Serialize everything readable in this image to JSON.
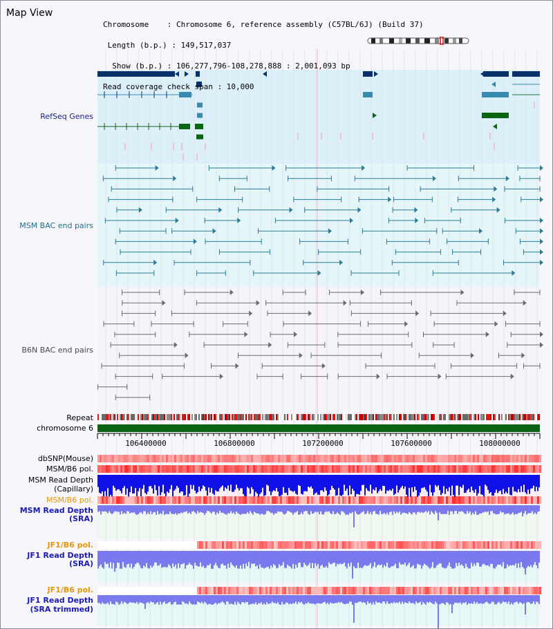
{
  "map_title": "Map View",
  "info": {
    "chromosome": "Chromosome    : Chromosome 6, reference assembly (C57BL/6J) (Build 37)",
    "length": " Length (b.p.) : 149,517,037",
    "show": "  Show (b.p.) : 106,277,796-108,278,888 : 2,001,093 bp",
    "coverage": "Read coverage check span : 10,000"
  },
  "tracks": {
    "refseq": "RefSeq Genes",
    "msm_bac": "MSM BAC end pairs",
    "b6n_bac": "B6N BAC end pairs",
    "repeat": "Repeat",
    "chromosome": "chromosome 6",
    "dbsnp": "dbSNP(Mouse)",
    "msm_b6_pol_1": "MSM/B6 pol.",
    "msm_read_depth_cap_1": "MSM Read Depth",
    "msm_read_depth_cap_2": "(Capillary)",
    "msm_b6_pol_2": "MSM/B6 pol.",
    "msm_read_depth_sra_1": "MSM Read Depth",
    "msm_read_depth_sra_2": "(SRA)",
    "jf1_b6_pol_1": "JF1/B6 pol.",
    "jf1_read_depth_1": "JF1 Read Depth",
    "jf1_read_depth_2": "(SRA)",
    "jf1_b6_pol_2": "JF1/B6 pol.",
    "jf1_trim_1": "JF1 Read Depth",
    "jf1_trim_2": "(SRA trimmed)"
  },
  "axis_ticks": [
    "106400000",
    "106800000",
    "107200000",
    "107600000",
    "108000000"
  ],
  "colors": {
    "refseq_label": "#1a1a8c",
    "msm_label": "#1e6e8c",
    "b6n_label": "#4a4a4a",
    "orange_label": "#e8960a",
    "blue_label": "#1a1ab4",
    "refseq_bg": "#dcf0fa",
    "msm_bg": "#e4f6f8",
    "gene_dark": "#08306b",
    "gene_mid": "#3a8ab0",
    "gene_green": "#0a6414",
    "chrom_bar": "#0a6414",
    "depth_cap": "#1010e8",
    "depth_sra": "#7a7aee"
  }
}
